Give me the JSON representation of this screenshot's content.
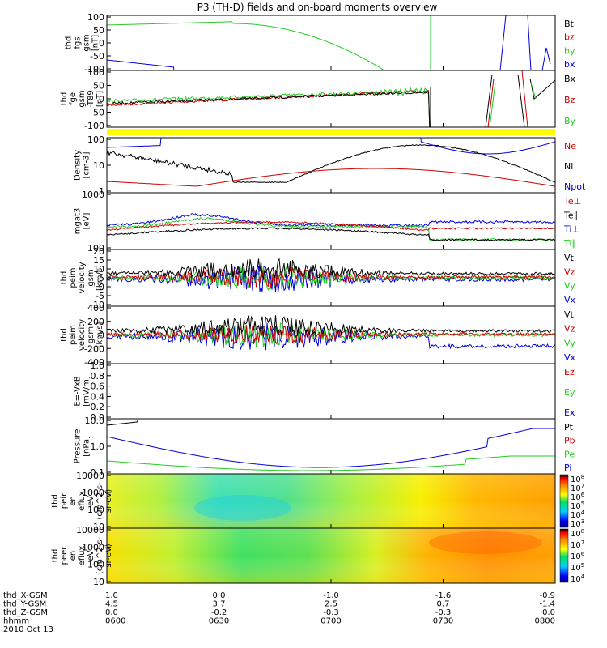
{
  "chart_data": {
    "type": "line",
    "title": "P3 (TH-D) fields and on-board moments overview",
    "panels": [
      {
        "ylabel": [
          "thd",
          "fgs",
          "gsm",
          "[nT]"
        ],
        "yticks": [
          "100",
          "50",
          "0",
          "-50",
          "-100"
        ],
        "legend": [
          {
            "name": "Bt",
            "color": "#000000"
          },
          {
            "name": "bz",
            "color": "#cc0000"
          },
          {
            "name": "by",
            "color": "#22cc22"
          },
          {
            "name": "bx",
            "color": "#0000dd"
          }
        ]
      },
      {
        "ylabel": [
          "thd",
          "fge",
          "gsm",
          "-T89",
          "[nT]"
        ],
        "yticks": [
          "100",
          "50",
          "0",
          "-50",
          "-100"
        ],
        "legend": [
          {
            "name": "Bx",
            "color": "#000000"
          },
          {
            "name": "Bz",
            "color": "#cc0000"
          },
          {
            "name": "By",
            "color": "#22cc22"
          }
        ]
      },
      {
        "ylabel": [
          "Density",
          "[cm-3]"
        ],
        "yticks": [
          "100",
          "10",
          "1"
        ],
        "legend": [
          {
            "name": "Ne",
            "color": "#cc0000"
          },
          {
            "name": "Ni",
            "color": "#000000"
          },
          {
            "name": "Npot",
            "color": "#0000dd"
          }
        ]
      },
      {
        "ylabel": [
          "mgat3",
          "[eV]"
        ],
        "yticks": [
          "1000",
          "100"
        ],
        "legend": [
          {
            "name": "Te⊥",
            "color": "#cc0000"
          },
          {
            "name": "Te∥",
            "color": "#000000"
          },
          {
            "name": "Ti⊥",
            "color": "#0000dd"
          },
          {
            "name": "Ti∥",
            "color": "#22cc22"
          }
        ]
      },
      {
        "ylabel": [
          "thd",
          "peim",
          "velocity",
          "gsm",
          "[km/s]"
        ],
        "yticks": [
          "20",
          "15",
          "10",
          "5",
          "0",
          "-5",
          "-10"
        ],
        "legend": [
          {
            "name": "Vt",
            "color": "#000000"
          },
          {
            "name": "Vz",
            "color": "#cc0000"
          },
          {
            "name": "Vy",
            "color": "#22cc22"
          },
          {
            "name": "Vx",
            "color": "#0000dd"
          }
        ]
      },
      {
        "ylabel": [
          "thd",
          "peim",
          "velocity",
          "gsm",
          "[km/s]"
        ],
        "yticks": [
          "400",
          "200",
          "0",
          "-200",
          "-400"
        ],
        "legend": [
          {
            "name": "Vt",
            "color": "#000000"
          },
          {
            "name": "Vz",
            "color": "#cc0000"
          },
          {
            "name": "Vy",
            "color": "#22cc22"
          },
          {
            "name": "Vx",
            "color": "#0000dd"
          }
        ]
      },
      {
        "ylabel": [
          "E=-VxB",
          "[mV/m]"
        ],
        "yticks": [
          "1.0",
          "0.8",
          "0.6",
          "0.4",
          "0.2",
          "0.0"
        ],
        "legend": [
          {
            "name": "Ez",
            "color": "#cc0000"
          },
          {
            "name": "Ey",
            "color": "#22cc22"
          },
          {
            "name": "Ex",
            "color": "#0000dd"
          }
        ]
      },
      {
        "ylabel": [
          "Pressure",
          "[nPa]"
        ],
        "yticks": [
          "10.0",
          "1.0",
          "0.1"
        ],
        "legend": [
          {
            "name": "Pt",
            "color": "#000000"
          },
          {
            "name": "Pb",
            "color": "#cc0000"
          },
          {
            "name": "Pe",
            "color": "#22cc22"
          },
          {
            "name": "Pi",
            "color": "#0000dd"
          }
        ]
      },
      {
        "ylabel": [
          "thd",
          "peir",
          "en",
          "eflux",
          "eV",
          "(cm^2-s-",
          "sr-eV)"
        ],
        "yticks": [
          "10000",
          "1000",
          "100",
          "10"
        ],
        "colorbar": [
          "10^8",
          "10^7",
          "10^6",
          "10^5",
          "10^4",
          "10^3"
        ]
      },
      {
        "ylabel": [
          "thd",
          "peer",
          "en",
          "eflux",
          "eV",
          "(cm^2-s-",
          "sr-eV)"
        ],
        "yticks": [
          "10000",
          "1000",
          "100",
          "10"
        ],
        "colorbar": [
          "10^8",
          "10^7",
          "10^6",
          "10^5",
          "10^4"
        ]
      }
    ],
    "x_axis": {
      "rows": [
        {
          "label": "thd_X-GSM",
          "values": [
            "1.0",
            "0.0",
            "-1.0",
            "-1.6",
            "-0.9"
          ]
        },
        {
          "label": "thd_Y-GSM",
          "values": [
            "4.5",
            "3.7",
            "2.5",
            "0.7",
            "-1.4"
          ]
        },
        {
          "label": "thd_Z-GSM",
          "values": [
            "0.0",
            "-0.2",
            "-0.3",
            "-0.3",
            "0.0"
          ]
        },
        {
          "label": "hhmm",
          "values": [
            "0600",
            "0630",
            "0700",
            "0730",
            "0800"
          ]
        }
      ],
      "date": "2010 Oct 13"
    }
  }
}
